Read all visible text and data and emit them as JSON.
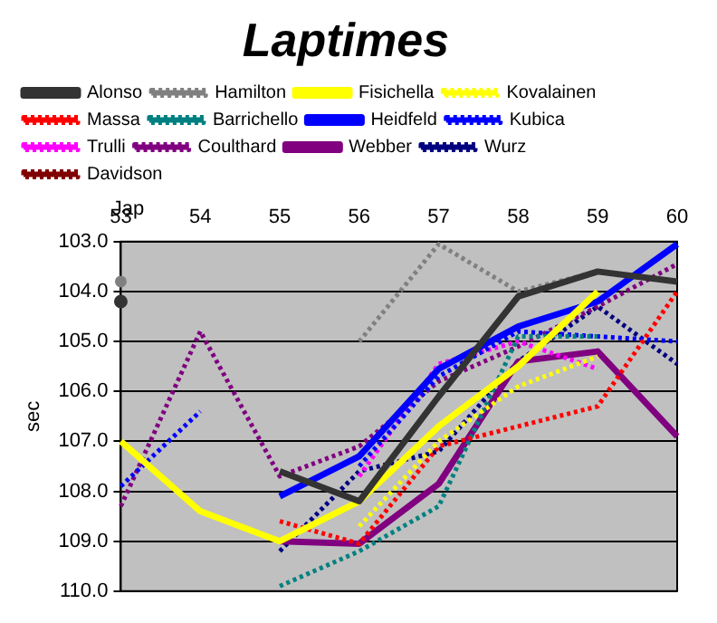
{
  "chart_data": {
    "type": "line",
    "title": "Laptimes",
    "ylabel": "sec",
    "categories": [
      "53",
      "54",
      "55",
      "56",
      "57",
      "58",
      "59",
      "60"
    ],
    "series": [
      {
        "name": "Alonso",
        "color": "#333333",
        "line_style": "solid",
        "values": [
          104.2,
          null,
          107.6,
          108.2,
          106.1,
          104.1,
          103.6,
          103.8
        ]
      },
      {
        "name": "Hamilton",
        "color": "#808080",
        "line_style": "dotted",
        "values": [
          103.8,
          null,
          null,
          105.0,
          103.05,
          104.0,
          103.6,
          null
        ]
      },
      {
        "name": "Fisichella",
        "color": "#ffff00",
        "line_style": "solid",
        "values": [
          107.0,
          108.4,
          109.0,
          108.2,
          106.7,
          105.5,
          104.0,
          null
        ]
      },
      {
        "name": "Kovalainen",
        "color": "#ffff00",
        "line_style": "dotted",
        "values": [
          null,
          null,
          null,
          108.7,
          107.0,
          105.9,
          105.3,
          null
        ]
      },
      {
        "name": "Massa",
        "color": "#ff0000",
        "line_style": "dotted",
        "values": [
          null,
          null,
          108.6,
          109.05,
          107.1,
          106.7,
          106.3,
          104.0
        ]
      },
      {
        "name": "Barrichello",
        "color": "#008080",
        "line_style": "dotted",
        "values": [
          null,
          null,
          109.9,
          109.2,
          108.3,
          104.9,
          104.9,
          null
        ]
      },
      {
        "name": "Heidfeld",
        "color": "#0000ff",
        "line_style": "solid",
        "values": [
          null,
          null,
          108.1,
          107.3,
          105.55,
          104.7,
          104.2,
          103.05
        ]
      },
      {
        "name": "Kubica",
        "color": "#0000ff",
        "line_style": "dotted",
        "values": [
          107.9,
          106.4,
          null,
          107.5,
          105.7,
          104.8,
          104.9,
          105.0
        ]
      },
      {
        "name": "Trulli",
        "color": "#ff00ff",
        "line_style": "dotted",
        "values": [
          null,
          null,
          null,
          107.7,
          105.45,
          105.0,
          105.55,
          null
        ]
      },
      {
        "name": "Coulthard",
        "color": "#800080",
        "line_style": "dotted",
        "values": [
          108.3,
          104.8,
          107.7,
          107.1,
          105.8,
          105.1,
          104.3,
          103.45
        ]
      },
      {
        "name": "Webber",
        "color": "#800080",
        "line_style": "solid",
        "values": [
          null,
          null,
          109.0,
          109.05,
          107.85,
          105.4,
          105.2,
          106.9
        ]
      },
      {
        "name": "Wurz",
        "color": "#000080",
        "line_style": "dotted",
        "values": [
          null,
          null,
          109.2,
          107.6,
          107.2,
          105.4,
          104.3,
          105.45
        ]
      },
      {
        "name": "Davidson",
        "color": "#800000",
        "line_style": "dotted",
        "values": [
          null,
          null,
          null,
          null,
          null,
          null,
          null,
          null
        ]
      }
    ],
    "ylim": [
      110,
      103
    ],
    "yticks": [
      {
        "value": 103,
        "label": "103.0"
      },
      {
        "value": 104,
        "label": "104.0"
      },
      {
        "value": 105,
        "label": "105.0"
      },
      {
        "value": 106,
        "label": "106.0"
      },
      {
        "value": 107,
        "label": "107.0"
      },
      {
        "value": 108,
        "label": "108.0"
      },
      {
        "value": 109,
        "label": "109.0"
      },
      {
        "value": 110,
        "label": "110.0"
      }
    ],
    "grid": "y",
    "legend": "top",
    "marker": "none",
    "annotations": [
      "Jap"
    ]
  }
}
